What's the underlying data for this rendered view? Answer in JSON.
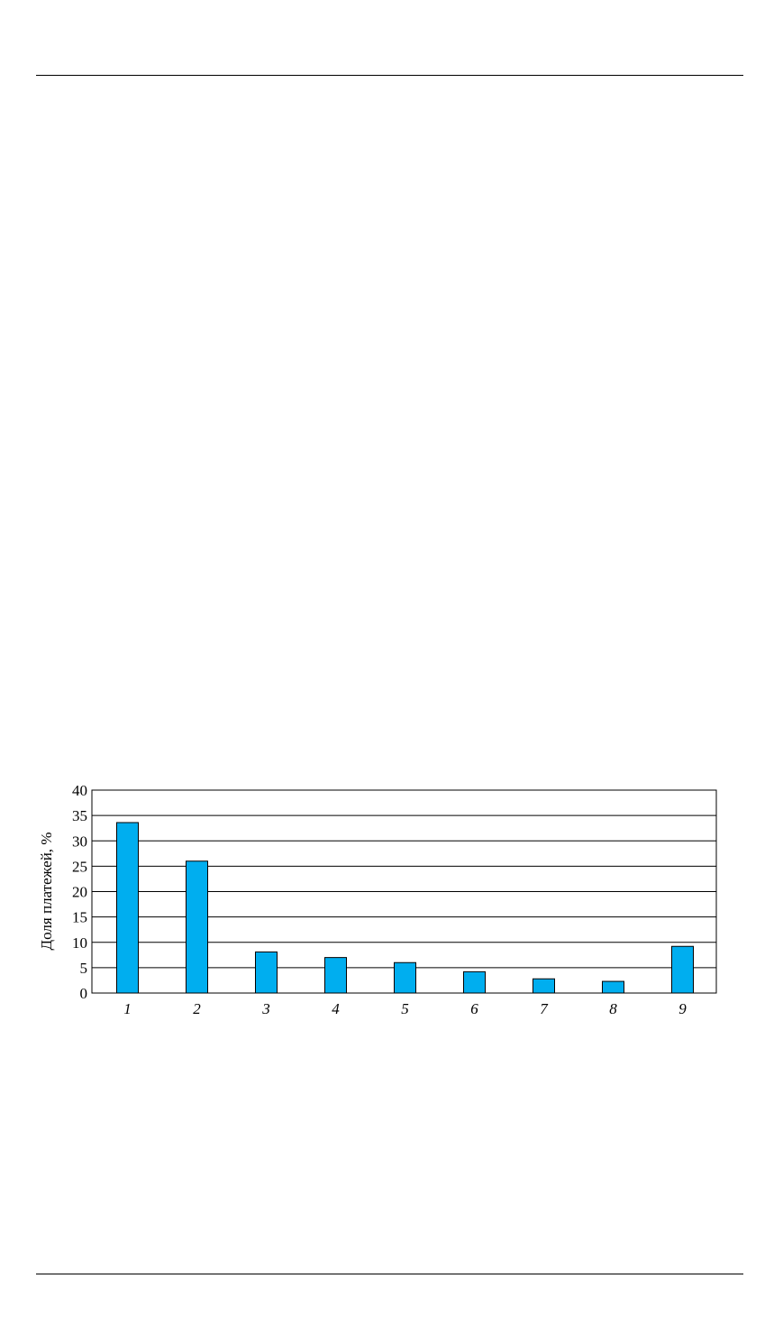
{
  "chart_data": {
    "type": "bar",
    "title": "",
    "xlabel": "",
    "ylabel": "Доля платежей, %",
    "categories": [
      "1",
      "2",
      "3",
      "4",
      "5",
      "6",
      "7",
      "8",
      "9"
    ],
    "values": [
      33.6,
      26.0,
      8.1,
      7.0,
      6.0,
      4.2,
      2.8,
      2.3,
      9.2
    ],
    "ylim": [
      0,
      40
    ],
    "yticks": [
      0,
      5,
      10,
      15,
      20,
      25,
      30,
      35,
      40
    ],
    "grid": true,
    "bar_color": "#00AEEF"
  }
}
